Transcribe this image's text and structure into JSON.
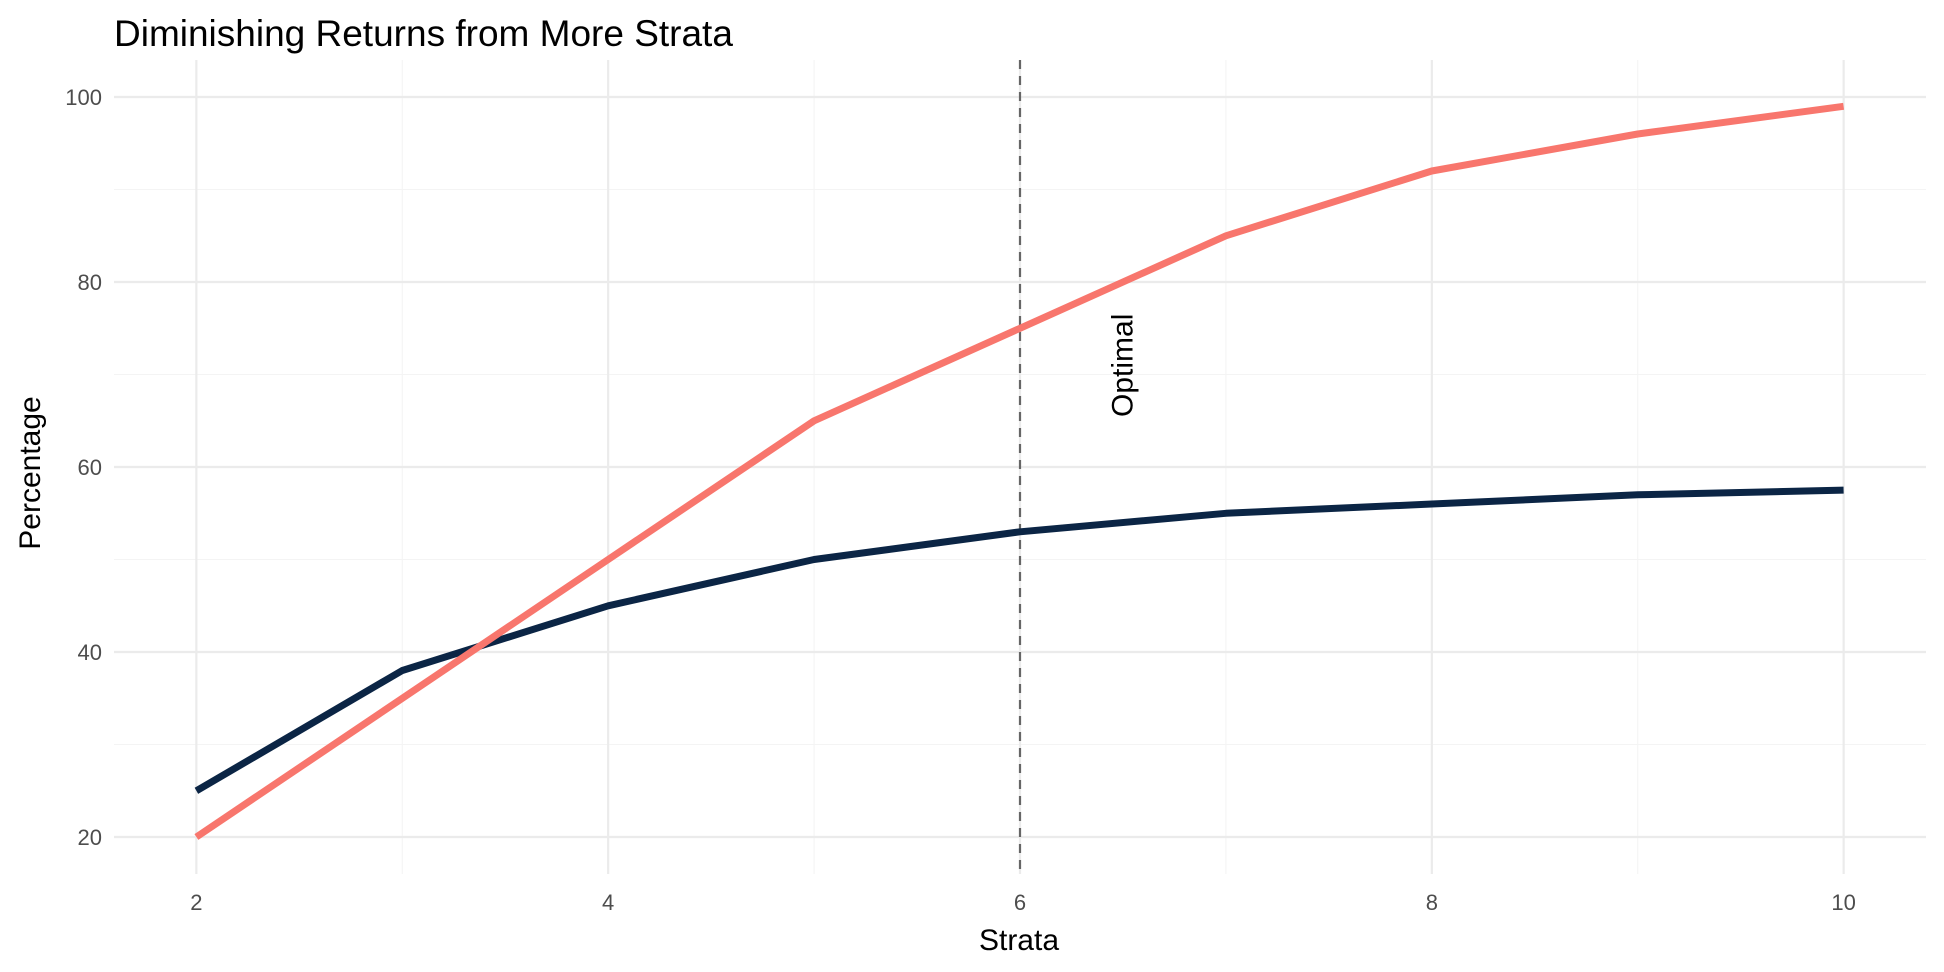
{
  "chart_data": {
    "type": "line",
    "title": "Diminishing Returns from More Strata",
    "xlabel": "Strata",
    "ylabel": "Percentage",
    "x": [
      2,
      3,
      4,
      5,
      6,
      7,
      8,
      9,
      10
    ],
    "series": [
      {
        "color": "#0b2545",
        "values": [
          25,
          38,
          45,
          50,
          53,
          55,
          56,
          57,
          57.5
        ]
      },
      {
        "color": "#f8766d",
        "values": [
          20,
          35,
          50,
          65,
          75,
          85,
          92,
          96,
          99
        ]
      }
    ],
    "xlim": [
      1.6,
      10.4
    ],
    "ylim": [
      16,
      104
    ],
    "x_ticks": [
      2,
      4,
      6,
      8,
      10
    ],
    "y_ticks": [
      20,
      40,
      60,
      80,
      100
    ],
    "x_minor": [
      3,
      5,
      7,
      9
    ],
    "y_minor": [
      30,
      50,
      70,
      90
    ],
    "vline": {
      "x": 6,
      "style": "dashed",
      "color": "#666666"
    },
    "annotations": [
      {
        "text": "Optimal",
        "x": 6.5,
        "y": 71,
        "rotation": -90
      }
    ],
    "grid": true,
    "legend": "none"
  }
}
